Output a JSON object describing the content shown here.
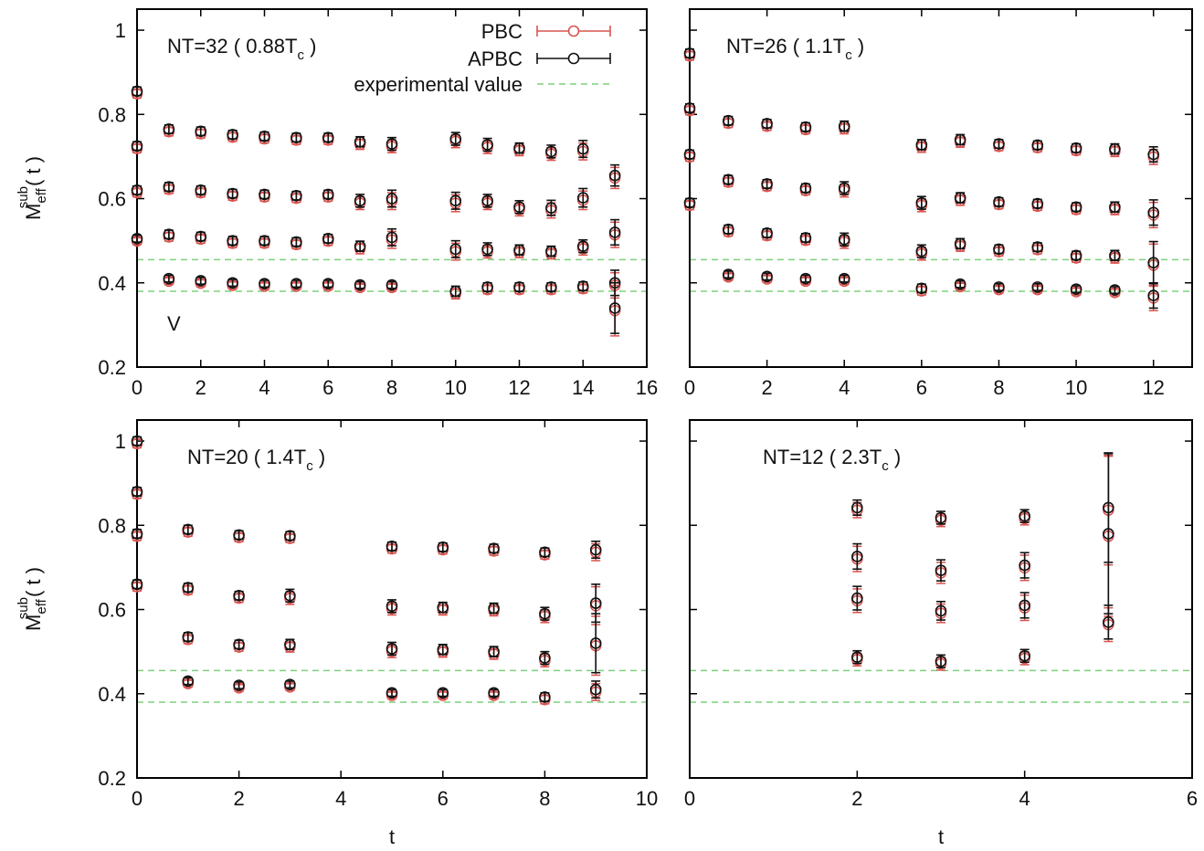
{
  "legend": {
    "pbc": "PBC",
    "apbc": "APBC",
    "exp": "experimental value"
  },
  "colors": {
    "pbc": "#d9534f",
    "apbc": "#111111",
    "exp": "#7fd07f",
    "frame": "#000000"
  },
  "chart_data": [
    {
      "type": "scatter",
      "title": "",
      "annotation": "NT=32 ( 0.88T",
      "annotation_sub": "c",
      "annotation_tail": " )",
      "channel_label": "V",
      "ylabel_main": "M",
      "ylabel_sub": "eff",
      "ylabel_sup": "sub",
      "ylabel_tail": "( t )",
      "xlabel": "",
      "xlim": [
        0,
        16
      ],
      "ylim": [
        0.2,
        1.05
      ],
      "xticks": [
        "0",
        "2",
        "4",
        "6",
        "8",
        "10",
        "12",
        "14",
        "16"
      ],
      "yticks": [
        "0.2",
        "0.4",
        "0.6",
        "0.8",
        "1"
      ],
      "exp_lines": [
        0.455,
        0.38
      ],
      "series": [
        {
          "name": "APBC",
          "x": [
            0,
            1,
            2,
            3,
            4,
            5,
            6,
            7,
            8,
            10,
            11,
            12,
            13,
            14,
            15
          ],
          "y": [
            0.855,
            0.765,
            0.76,
            0.752,
            0.748,
            0.745,
            0.745,
            0.735,
            0.73,
            0.742,
            0.728,
            0.72,
            0.712,
            0.718,
            0.655
          ],
          "err": [
            0.01,
            0.01,
            0.01,
            0.01,
            0.01,
            0.01,
            0.01,
            0.012,
            0.015,
            0.015,
            0.015,
            0.012,
            0.015,
            0.02,
            0.025
          ]
        },
        {
          "name": "APBC",
          "x": [
            0,
            1,
            2,
            3,
            4,
            5,
            6,
            7,
            8,
            10,
            11,
            12,
            13,
            14,
            15
          ],
          "y": [
            0.725,
            0.628,
            0.62,
            0.612,
            0.61,
            0.607,
            0.61,
            0.595,
            0.6,
            0.595,
            0.595,
            0.58,
            0.578,
            0.602,
            0.52
          ],
          "err": [
            0.01,
            0.01,
            0.01,
            0.01,
            0.01,
            0.01,
            0.01,
            0.015,
            0.02,
            0.02,
            0.015,
            0.015,
            0.018,
            0.022,
            0.03
          ]
        },
        {
          "name": "APBC",
          "x": [
            0,
            1,
            2,
            3,
            4,
            5,
            6,
            7,
            8,
            10,
            11,
            12,
            13,
            14,
            15
          ],
          "y": [
            0.62,
            0.515,
            0.51,
            0.5,
            0.5,
            0.497,
            0.505,
            0.487,
            0.508,
            0.48,
            0.48,
            0.478,
            0.475,
            0.487,
            0.4
          ],
          "err": [
            0.01,
            0.01,
            0.01,
            0.01,
            0.01,
            0.01,
            0.01,
            0.012,
            0.02,
            0.02,
            0.015,
            0.012,
            0.012,
            0.015,
            0.03
          ]
        },
        {
          "name": "APBC",
          "x": [
            0,
            1,
            2,
            3,
            4,
            5,
            6,
            7,
            8,
            10,
            11,
            12,
            13,
            14,
            15
          ],
          "y": [
            0.505,
            0.41,
            0.405,
            0.4,
            0.398,
            0.398,
            0.398,
            0.395,
            0.395,
            0.38,
            0.39,
            0.39,
            0.39,
            0.392,
            0.34
          ],
          "err": [
            0.008,
            0.008,
            0.008,
            0.008,
            0.008,
            0.008,
            0.008,
            0.008,
            0.008,
            0.012,
            0.01,
            0.01,
            0.01,
            0.01,
            0.06
          ]
        }
      ]
    },
    {
      "type": "scatter",
      "title": "",
      "annotation": "NT=26 ( 1.1T",
      "annotation_sub": "c",
      "annotation_tail": " )",
      "xlabel": "",
      "xlim": [
        0,
        13
      ],
      "ylim": [
        0.2,
        1.05
      ],
      "xticks": [
        "0",
        "2",
        "4",
        "6",
        "8",
        "10",
        "12"
      ],
      "yticks": [],
      "exp_lines": [
        0.455,
        0.38
      ],
      "series": [
        {
          "name": "APBC",
          "x": [
            0,
            1,
            2,
            3,
            4,
            6,
            7,
            8,
            9,
            10,
            11,
            12
          ],
          "y": [
            0.945,
            0.785,
            0.778,
            0.77,
            0.772,
            0.728,
            0.74,
            0.73,
            0.727,
            0.72,
            0.718,
            0.705
          ],
          "err": [
            0.01,
            0.01,
            0.01,
            0.01,
            0.012,
            0.012,
            0.012,
            0.01,
            0.01,
            0.01,
            0.012,
            0.018
          ]
        },
        {
          "name": "APBC",
          "x": [
            0,
            1,
            2,
            3,
            4,
            6,
            7,
            8,
            9,
            10,
            11,
            12
          ],
          "y": [
            0.815,
            0.645,
            0.635,
            0.625,
            0.625,
            0.59,
            0.602,
            0.592,
            0.588,
            0.58,
            0.58,
            0.567
          ],
          "err": [
            0.01,
            0.01,
            0.01,
            0.01,
            0.015,
            0.015,
            0.012,
            0.01,
            0.01,
            0.01,
            0.012,
            0.03
          ]
        },
        {
          "name": "APBC",
          "x": [
            0,
            1,
            2,
            3,
            4,
            6,
            7,
            8,
            9,
            10,
            11,
            12
          ],
          "y": [
            0.705,
            0.527,
            0.518,
            0.507,
            0.503,
            0.475,
            0.493,
            0.48,
            0.485,
            0.465,
            0.465,
            0.448
          ],
          "err": [
            0.01,
            0.01,
            0.01,
            0.01,
            0.015,
            0.015,
            0.012,
            0.01,
            0.01,
            0.01,
            0.012,
            0.05
          ]
        },
        {
          "name": "APBC",
          "x": [
            0,
            1,
            2,
            3,
            4,
            6,
            7,
            8,
            9,
            10,
            11,
            12
          ],
          "y": [
            0.59,
            0.42,
            0.415,
            0.41,
            0.41,
            0.387,
            0.397,
            0.39,
            0.39,
            0.385,
            0.383,
            0.37
          ],
          "err": [
            0.01,
            0.008,
            0.008,
            0.008,
            0.008,
            0.01,
            0.008,
            0.008,
            0.008,
            0.008,
            0.008,
            0.03
          ]
        }
      ]
    },
    {
      "type": "scatter",
      "title": "",
      "annotation": "NT=20 ( 1.4T",
      "annotation_sub": "c",
      "annotation_tail": " )",
      "ylabel_main": "M",
      "ylabel_sub": "eff",
      "ylabel_sup": "sub",
      "ylabel_tail": "( t )",
      "xlabel": "t",
      "xlim": [
        0,
        10
      ],
      "ylim": [
        0.2,
        1.05
      ],
      "xticks": [
        "0",
        "2",
        "4",
        "6",
        "8",
        "10"
      ],
      "yticks": [
        "0.2",
        "0.4",
        "0.6",
        "0.8",
        "1"
      ],
      "exp_lines": [
        0.455,
        0.38
      ],
      "series": [
        {
          "name": "APBC",
          "x": [
            0,
            1,
            2,
            3,
            5,
            6,
            7,
            8,
            9
          ],
          "y": [
            1.0,
            0.79,
            0.777,
            0.775,
            0.75,
            0.748,
            0.745,
            0.736,
            0.742
          ],
          "err": [
            0.01,
            0.01,
            0.01,
            0.01,
            0.01,
            0.01,
            0.01,
            0.01,
            0.02
          ]
        },
        {
          "name": "APBC",
          "x": [
            0,
            1,
            2,
            3,
            5,
            6,
            7,
            8,
            9
          ],
          "y": [
            0.88,
            0.652,
            0.633,
            0.633,
            0.608,
            0.605,
            0.603,
            0.59,
            0.615
          ],
          "err": [
            0.01,
            0.01,
            0.01,
            0.015,
            0.015,
            0.012,
            0.012,
            0.015,
            0.045
          ]
        },
        {
          "name": "APBC",
          "x": [
            0,
            1,
            2,
            3,
            5,
            6,
            7,
            8,
            9
          ],
          "y": [
            0.78,
            0.535,
            0.517,
            0.517,
            0.507,
            0.505,
            0.5,
            0.485,
            0.52
          ],
          "err": [
            0.01,
            0.01,
            0.01,
            0.012,
            0.015,
            0.012,
            0.012,
            0.015,
            0.07
          ]
        },
        {
          "name": "APBC",
          "x": [
            0,
            1,
            2,
            3,
            5,
            6,
            7,
            8,
            9
          ],
          "y": [
            0.66,
            0.43,
            0.42,
            0.422,
            0.402,
            0.402,
            0.402,
            0.392,
            0.41
          ],
          "err": [
            0.01,
            0.008,
            0.008,
            0.008,
            0.008,
            0.008,
            0.008,
            0.01,
            0.02
          ]
        }
      ]
    },
    {
      "type": "scatter",
      "title": "",
      "annotation": "NT=12 ( 2.3T",
      "annotation_sub": "c",
      "annotation_tail": " )",
      "xlabel": "t",
      "xlim": [
        0,
        6
      ],
      "ylim": [
        0.2,
        1.05
      ],
      "xticks": [
        "0",
        "2",
        "4",
        "6"
      ],
      "yticks": [],
      "exp_lines": [
        0.455,
        0.38
      ],
      "series": [
        {
          "name": "APBC",
          "x": [
            2,
            3,
            4,
            5
          ],
          "y": [
            0.842,
            0.818,
            0.822,
            0.842
          ],
          "err": [
            0.018,
            0.015,
            0.015,
            0.13
          ]
        },
        {
          "name": "APBC",
          "x": [
            2,
            3,
            4,
            5
          ],
          "y": [
            0.726,
            0.693,
            0.705,
            0.78
          ],
          "err": [
            0.03,
            0.025,
            0.03,
            0.19
          ]
        },
        {
          "name": "APBC",
          "x": [
            2,
            3,
            4,
            5
          ],
          "y": [
            0.627,
            0.597,
            0.61,
            0.57
          ],
          "err": [
            0.028,
            0.022,
            0.03,
            0.04
          ]
        },
        {
          "name": "APBC",
          "x": [
            2,
            3,
            4
          ],
          "y": [
            0.487,
            0.477,
            0.49
          ],
          "err": [
            0.015,
            0.015,
            0.015
          ]
        }
      ]
    }
  ]
}
